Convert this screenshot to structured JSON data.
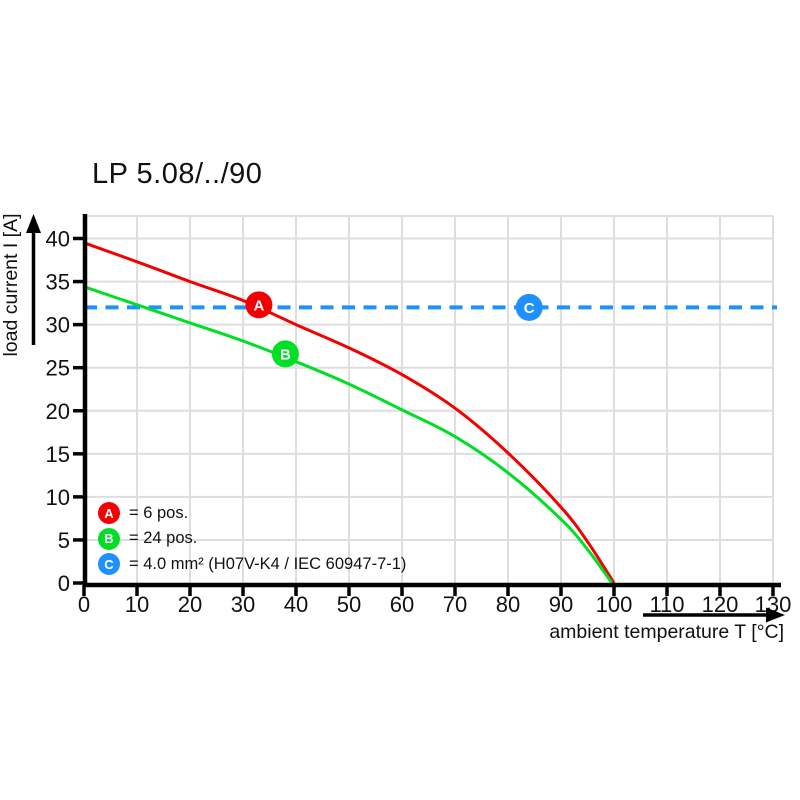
{
  "chart_data": {
    "type": "line",
    "title": "LP 5.08/../90",
    "xlabel": "ambient temperature T [°C]",
    "ylabel": "load current I [A]",
    "xlim": [
      0,
      130
    ],
    "ylim": [
      0,
      42.5
    ],
    "x_ticks": [
      0,
      10,
      20,
      30,
      40,
      50,
      60,
      70,
      80,
      90,
      100,
      110,
      120,
      130
    ],
    "y_ticks": [
      0,
      5,
      10,
      15,
      20,
      25,
      30,
      35,
      40
    ],
    "grid": true,
    "legend_position": "inside-bottom-left",
    "series": [
      {
        "key": "A",
        "name": "6 pos.",
        "type": "curve",
        "color": "#f40000",
        "points": [
          [
            0,
            39.5
          ],
          [
            10,
            37.3
          ],
          [
            20,
            35.0
          ],
          [
            30,
            32.8
          ],
          [
            40,
            30.0
          ],
          [
            50,
            27.3
          ],
          [
            60,
            24.2
          ],
          [
            70,
            20.3
          ],
          [
            80,
            15.1
          ],
          [
            90,
            8.8
          ],
          [
            95,
            4.8
          ],
          [
            100,
            0
          ]
        ]
      },
      {
        "key": "B",
        "name": "24 pos.",
        "type": "curve",
        "color": "#00de26",
        "points": [
          [
            0,
            34.4
          ],
          [
            10,
            32.3
          ],
          [
            20,
            30.2
          ],
          [
            30,
            28.1
          ],
          [
            40,
            25.7
          ],
          [
            50,
            23.1
          ],
          [
            60,
            20.1
          ],
          [
            70,
            17.0
          ],
          [
            80,
            12.8
          ],
          [
            90,
            7.4
          ],
          [
            95,
            3.9
          ],
          [
            99.6,
            0
          ]
        ]
      },
      {
        "key": "C",
        "name": "4.0 mm² (H07V-K4 / IEC 60947-7-1)",
        "type": "hline",
        "color": "#1e90ff",
        "value": 32
      }
    ],
    "markers": [
      {
        "key": "A",
        "x": 33,
        "y": 32.3,
        "color": "#f40000"
      },
      {
        "key": "B",
        "x": 38,
        "y": 26.6,
        "color": "#00de26"
      },
      {
        "key": "C",
        "x": 84,
        "y": 32.0,
        "color": "#1e90ff"
      }
    ],
    "legend": [
      {
        "key": "A",
        "color": "#f40000",
        "label": "= 6 pos."
      },
      {
        "key": "B",
        "color": "#00de26",
        "label": "= 24 pos."
      },
      {
        "key": "C",
        "color": "#1e90ff",
        "label": "= 4.0 mm² (H07V-K4 / IEC 60947-7-1)"
      }
    ]
  }
}
